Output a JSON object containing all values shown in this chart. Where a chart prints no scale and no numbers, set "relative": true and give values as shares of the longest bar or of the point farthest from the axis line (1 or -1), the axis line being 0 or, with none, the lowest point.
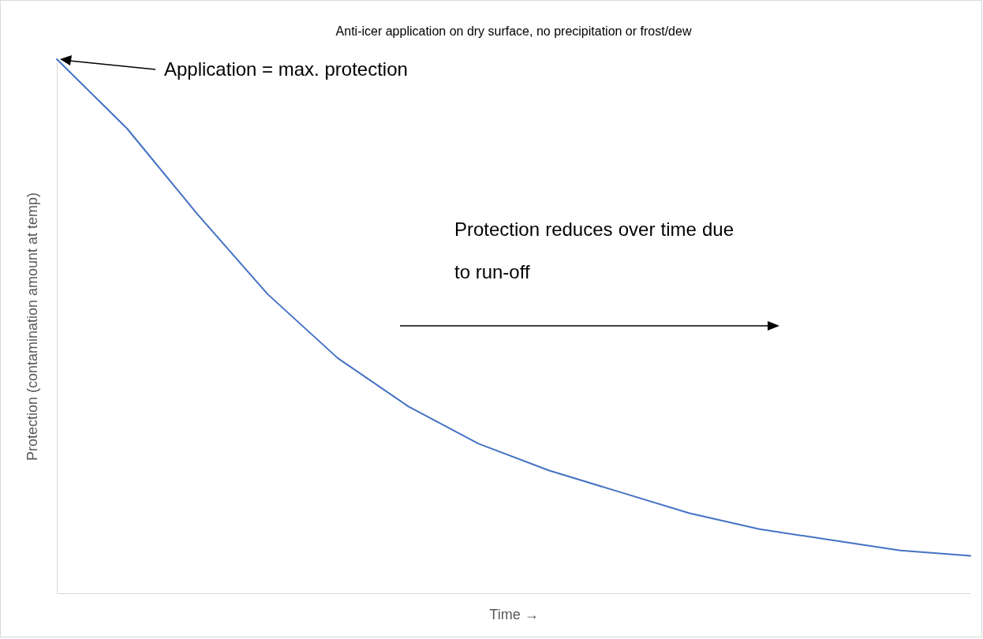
{
  "chart_data": {
    "type": "line",
    "title": "Anti-icer application on dry surface, no precipitation or frost/dew",
    "xlabel": "Time →",
    "ylabel": "Protection (contamination amount at temp)",
    "relative": true,
    "grid": false,
    "legend": false,
    "marker": "none",
    "line_style": "solid",
    "categories": [
      null,
      null,
      null,
      null,
      null,
      null,
      null,
      null,
      null,
      null,
      null,
      null,
      null,
      null
    ],
    "series": [
      {
        "color": "#4472c4",
        "values": [
          1,
          0.87,
          0.71,
          0.56,
          0.44,
          0.35,
          0.28,
          0.23,
          0.19,
          0.15,
          0.12,
          0.1,
          0.08,
          0.07
        ]
      }
    ],
    "annotations": [
      "Application = max. protection",
      "Protection reduces over time due to run-off"
    ]
  }
}
